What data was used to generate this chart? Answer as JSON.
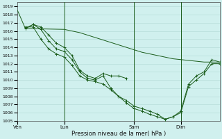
{
  "xlabel": "Pression niveau de la mer( hPa )",
  "ylim": [
    1005,
    1019.5
  ],
  "yticks": [
    1005,
    1006,
    1007,
    1008,
    1009,
    1010,
    1011,
    1012,
    1013,
    1014,
    1015,
    1016,
    1017,
    1018,
    1019
  ],
  "background_color": "#d0f0ee",
  "grid_color": "#b0d8d4",
  "line_color": "#1a5c1a",
  "xtick_labels": [
    "Ven",
    "Lun",
    "Sam",
    "Dim"
  ],
  "xtick_positions": [
    0,
    6,
    15,
    21
  ],
  "xlim": [
    0,
    26
  ],
  "vlines": [
    6,
    15,
    21
  ],
  "line1_x": [
    0,
    1,
    6,
    7,
    8,
    9,
    10,
    11,
    12,
    13,
    14,
    15,
    16,
    17,
    18,
    19,
    20,
    21,
    22,
    23,
    24,
    25,
    26
  ],
  "line1_y": [
    1018.5,
    1016.3,
    1016.2,
    1016.0,
    1015.8,
    1015.5,
    1015.2,
    1014.9,
    1014.6,
    1014.3,
    1014.0,
    1013.7,
    1013.4,
    1013.2,
    1013.0,
    1012.8,
    1012.6,
    1012.5,
    1012.4,
    1012.3,
    1012.2,
    1012.2,
    1012.2
  ],
  "line2_x": [
    1,
    2,
    3,
    4,
    5,
    6,
    7,
    8,
    9,
    10,
    11,
    12,
    13,
    14
  ],
  "line2_y": [
    1016.3,
    1016.8,
    1016.5,
    1015.5,
    1014.5,
    1014.0,
    1013.0,
    1011.2,
    1010.5,
    1010.2,
    1010.8,
    1010.5,
    1010.5,
    1010.2
  ],
  "line3_x": [
    1,
    2,
    3,
    4,
    5,
    6,
    7,
    8,
    9,
    10,
    11,
    12,
    13,
    14,
    15,
    16,
    17,
    18,
    19,
    20,
    21,
    22,
    23,
    24,
    25,
    26
  ],
  "line3_y": [
    1016.3,
    1016.8,
    1016.2,
    1014.8,
    1013.8,
    1013.5,
    1012.5,
    1011.0,
    1010.2,
    1010.0,
    1010.5,
    1009.0,
    1008.0,
    1007.5,
    1006.8,
    1006.5,
    1006.2,
    1005.8,
    1005.2,
    1005.5,
    1006.2,
    1009.5,
    1010.5,
    1011.0,
    1012.5,
    1012.2
  ],
  "line4_x": [
    1,
    2,
    3,
    4,
    5,
    6,
    7,
    8,
    9,
    10,
    11,
    12,
    13,
    14,
    15,
    16,
    17,
    18,
    19,
    20,
    21,
    22,
    23,
    24,
    25,
    26
  ],
  "line4_y": [
    1016.5,
    1016.5,
    1015.0,
    1013.8,
    1013.2,
    1012.8,
    1011.8,
    1010.5,
    1010.0,
    1009.8,
    1009.5,
    1008.8,
    1008.0,
    1007.2,
    1006.5,
    1006.2,
    1005.8,
    1005.5,
    1005.2,
    1005.5,
    1006.0,
    1009.2,
    1010.0,
    1010.8,
    1012.0,
    1012.0
  ]
}
